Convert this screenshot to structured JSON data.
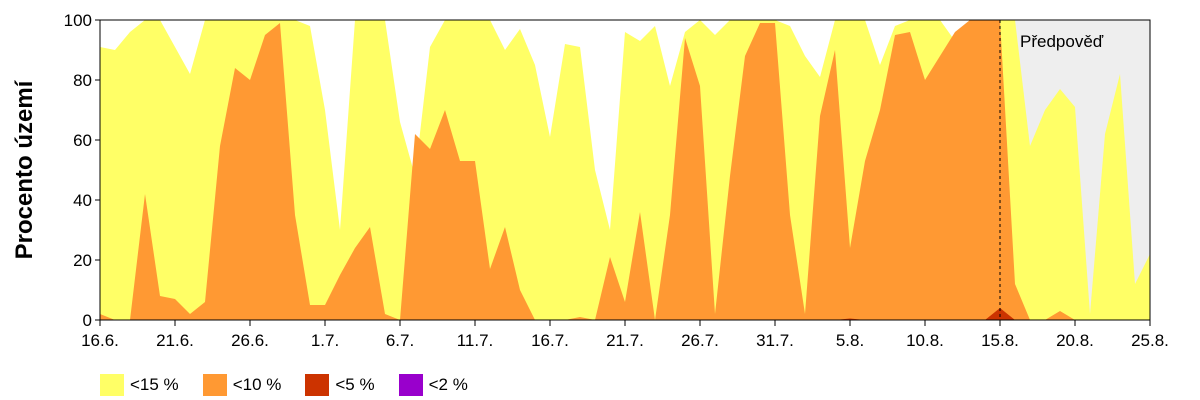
{
  "chart_data": {
    "type": "area",
    "ylabel": "Procento území",
    "ylim": [
      0,
      100
    ],
    "yticks": [
      0,
      20,
      40,
      60,
      80,
      100
    ],
    "xlim": [
      "16.6.",
      "25.8."
    ],
    "xticks": [
      "16.6.",
      "21.6.",
      "26.6.",
      "1.7.",
      "6.7.",
      "11.7.",
      "16.7.",
      "21.7.",
      "26.7.",
      "31.7.",
      "5.8.",
      "10.8.",
      "15.8.",
      "20.8.",
      "25.8."
    ],
    "forecast_label": "Předpověď",
    "forecast_start": "15.8.",
    "forecast_end": "25.8.",
    "legend": [
      {
        "label": "<15 %",
        "color": "#ffff66"
      },
      {
        "label": "<10 %",
        "color": "#ff9933"
      },
      {
        "label": "<5 %",
        "color": "#cc3300"
      },
      {
        "label": "<2 %",
        "color": "#9900cc"
      }
    ],
    "days": [
      "16.6.",
      "17.6.",
      "18.6.",
      "19.6.",
      "20.6.",
      "21.6.",
      "22.6.",
      "23.6.",
      "24.6.",
      "25.6.",
      "26.6.",
      "27.6.",
      "28.6.",
      "29.6.",
      "30.6.",
      "1.7.",
      "2.7.",
      "3.7.",
      "4.7.",
      "5.7.",
      "6.7.",
      "7.7.",
      "8.7.",
      "9.7.",
      "10.7.",
      "11.7.",
      "12.7.",
      "13.7.",
      "14.7.",
      "15.7.",
      "16.7.",
      "17.7.",
      "18.7.",
      "19.7.",
      "20.7.",
      "21.7.",
      "22.7.",
      "23.7.",
      "24.7.",
      "25.7.",
      "26.7.",
      "27.7.",
      "28.7.",
      "29.7.",
      "30.7.",
      "31.7.",
      "1.8.",
      "2.8.",
      "3.8.",
      "4.8.",
      "5.8.",
      "6.8.",
      "7.8.",
      "8.8.",
      "9.8.",
      "10.8.",
      "11.8.",
      "12.8.",
      "13.8.",
      "14.8.",
      "15.8.",
      "16.8.",
      "17.8.",
      "18.8.",
      "19.8.",
      "20.8.",
      "21.8.",
      "22.8.",
      "23.8.",
      "24.8.",
      "25.8."
    ],
    "series": [
      {
        "name": "<15 %",
        "color": "#ffff66",
        "values": [
          91,
          90,
          96,
          100,
          100,
          91,
          82,
          100,
          100,
          100,
          100,
          100,
          100,
          100,
          98,
          70,
          30,
          100,
          100,
          100,
          66,
          48,
          91,
          100,
          100,
          100,
          100,
          90,
          97,
          85,
          61,
          92,
          91,
          50,
          30,
          96,
          93,
          98,
          78,
          96,
          100,
          95,
          100,
          100,
          100,
          100,
          98,
          88,
          81,
          100,
          100,
          100,
          85,
          98,
          100,
          100,
          100,
          93,
          100,
          100,
          100,
          100,
          58,
          70,
          77,
          71,
          2,
          62,
          82,
          12,
          22
        ]
      },
      {
        "name": "<10 %",
        "color": "#ff9933",
        "values": [
          2,
          0,
          0,
          42,
          8,
          7,
          2,
          6,
          58,
          84,
          80,
          95,
          99,
          35,
          5,
          5,
          15,
          24,
          31,
          2,
          0,
          62,
          57,
          70,
          53,
          53,
          17,
          31,
          10,
          0,
          0,
          0,
          1,
          0,
          21,
          6,
          36,
          0,
          35,
          94,
          78,
          2,
          48,
          88,
          99,
          99,
          35,
          2,
          68,
          90,
          24,
          53,
          70,
          95,
          96,
          80,
          88,
          96,
          100,
          100,
          100,
          12,
          0,
          0,
          3,
          0,
          0,
          0,
          0,
          0,
          0
        ]
      },
      {
        "name": "<5 %",
        "color": "#cc3300",
        "values": [
          0,
          0,
          0,
          0,
          0,
          0,
          0,
          0,
          0,
          0,
          0,
          0,
          0,
          0,
          0,
          0,
          0,
          0,
          0,
          0,
          0,
          0,
          0,
          0,
          0,
          0,
          0,
          0,
          0,
          0,
          0,
          0,
          0,
          0,
          0,
          0,
          0,
          0,
          0,
          0,
          0,
          0,
          0,
          0,
          0,
          0,
          0,
          0,
          0,
          0,
          0.5,
          0,
          0,
          0,
          0,
          0,
          0,
          0,
          0,
          0,
          4,
          0,
          0,
          0,
          0,
          0,
          0,
          0,
          0,
          0,
          0
        ]
      },
      {
        "name": "<2 %",
        "color": "#9900cc",
        "values": [
          0,
          0,
          0,
          0,
          0,
          0,
          0,
          0,
          0,
          0,
          0,
          0,
          0,
          0,
          0,
          0,
          0,
          0,
          0,
          0,
          0,
          0,
          0,
          0,
          0,
          0,
          0,
          0,
          0,
          0,
          0,
          0,
          0,
          0,
          0,
          0,
          0,
          0,
          0,
          0,
          0,
          0,
          0,
          0,
          0,
          0,
          0,
          0,
          0,
          0,
          0,
          0,
          0,
          0,
          0,
          0,
          0,
          0,
          0,
          0,
          0,
          0,
          0,
          0,
          0,
          0,
          0,
          0,
          0,
          0,
          0
        ]
      }
    ]
  }
}
